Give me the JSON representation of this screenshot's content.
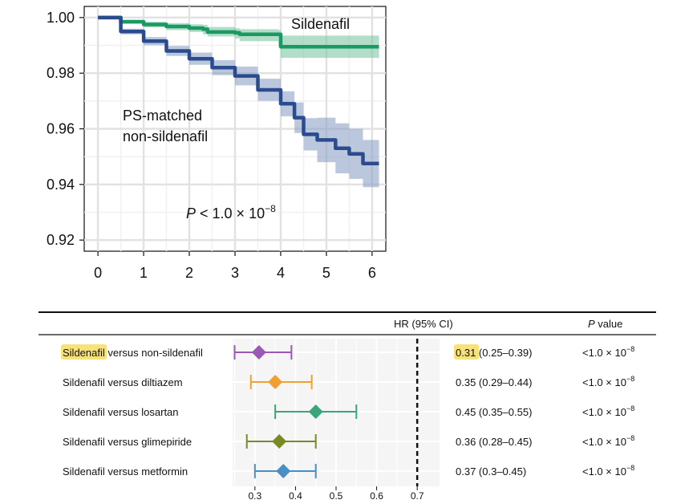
{
  "chart_data": [
    {
      "type": "line",
      "title": "",
      "xlabel": "",
      "ylabel": "",
      "xlim": [
        -0.3,
        6.3
      ],
      "ylim": [
        0.916,
        1.004
      ],
      "x_ticks": [
        "0",
        "1",
        "2",
        "3",
        "4",
        "5",
        "6"
      ],
      "y_ticks": [
        "1.00",
        "0.98",
        "0.96",
        "0.94",
        "0.92"
      ],
      "grid": true,
      "annotation": {
        "prefix": "P",
        "middle": " < 1.0 × 10",
        "exponent": "−8"
      },
      "series": [
        {
          "name": "Sildenafil",
          "color": "#1a9a63",
          "band_color": "#7fc6a4",
          "x": [
            0,
            0.5,
            1.0,
            1.5,
            2.0,
            2.3,
            2.4,
            3.0,
            3.1,
            3.95,
            4.0,
            6.15
          ],
          "y": [
            1.0,
            0.9985,
            0.9975,
            0.9968,
            0.9962,
            0.9958,
            0.9948,
            0.9945,
            0.994,
            0.994,
            0.9895,
            0.9895
          ],
          "lower": [
            1.0,
            0.9978,
            0.9965,
            0.9955,
            0.9948,
            0.994,
            0.9932,
            0.9925,
            0.9915,
            0.99,
            0.9855,
            0.9855
          ],
          "upper": [
            1.0,
            0.9992,
            0.9985,
            0.998,
            0.9976,
            0.9974,
            0.9966,
            0.9962,
            0.9958,
            0.9955,
            0.9935,
            0.9935
          ]
        },
        {
          "name": "PS-matched non-sildenafil",
          "color": "#2a4b8d",
          "band_color": "#8ea1c6",
          "x": [
            0,
            0.5,
            1.0,
            1.5,
            2.0,
            2.5,
            3.0,
            3.5,
            4.0,
            4.3,
            4.5,
            4.8,
            5.2,
            5.5,
            5.8,
            6.15
          ],
          "y": [
            1.0,
            0.995,
            0.9915,
            0.988,
            0.9852,
            0.982,
            0.979,
            0.974,
            0.969,
            0.964,
            0.958,
            0.956,
            0.953,
            0.951,
            0.9475,
            0.9475
          ],
          "lower": [
            1.0,
            0.994,
            0.99,
            0.9862,
            0.983,
            0.9793,
            0.9756,
            0.97,
            0.9645,
            0.9585,
            0.9522,
            0.948,
            0.944,
            0.942,
            0.939,
            0.939
          ],
          "upper": [
            1.0,
            0.996,
            0.993,
            0.9898,
            0.9874,
            0.9847,
            0.9824,
            0.978,
            0.9735,
            0.9695,
            0.9638,
            0.964,
            0.962,
            0.96,
            0.956,
            0.956
          ]
        }
      ],
      "labels": {
        "sildenafil": "Sildenafil",
        "nonsil_line1": "PS-matched",
        "nonsil_line2": "non-sildenafil"
      }
    },
    {
      "type": "forest",
      "header_hr": "HR (95% CI)",
      "header_p_italic": "P",
      "header_p_rest": " value",
      "xlim": [
        0.245,
        0.755
      ],
      "x_ticks": [
        0.3,
        0.4,
        0.5,
        0.6,
        0.7
      ],
      "x_tick_labels": [
        "0.3",
        "0.4",
        "0.5",
        "0.6",
        "0.7"
      ],
      "reference_line": 0.7,
      "rows": [
        {
          "label_highlight": "Sildenafil",
          "label_rest": " versus non-sildenafil",
          "hr": 0.31,
          "lo": 0.25,
          "hi": 0.39,
          "color": "#9b59b6",
          "hr_text": "0.31",
          "ci_text": " (0.25–0.39)",
          "highlight": true,
          "p_text": "<1.0 × 10",
          "p_exp": "−8"
        },
        {
          "label_highlight": "",
          "label_rest": "Sildenafil versus diltiazem",
          "hr": 0.35,
          "lo": 0.29,
          "hi": 0.44,
          "color": "#f0a030",
          "hr_text": "0.35",
          "ci_text": " (0.29–0.44)",
          "highlight": false,
          "p_text": "<1.0 × 10",
          "p_exp": "−8"
        },
        {
          "label_highlight": "",
          "label_rest": "Sildenafil versus losartan",
          "hr": 0.45,
          "lo": 0.35,
          "hi": 0.55,
          "color": "#3aa57a",
          "hr_text": "0.45",
          "ci_text": " (0.35–0.55)",
          "highlight": false,
          "p_text": "<1.0 × 10",
          "p_exp": "−8"
        },
        {
          "label_highlight": "",
          "label_rest": "Sildenafil versus glimepiride",
          "hr": 0.36,
          "lo": 0.28,
          "hi": 0.45,
          "color": "#7a8a22",
          "hr_text": "0.36",
          "ci_text": " (0.28–0.45)",
          "highlight": false,
          "p_text": "<1.0 × 10",
          "p_exp": "−8"
        },
        {
          "label_highlight": "",
          "label_rest": "Sildenafil versus metformin",
          "hr": 0.37,
          "lo": 0.3,
          "hi": 0.45,
          "color": "#4a8ec6",
          "hr_text": "0.37",
          "ci_text": " (0.3–0.45)",
          "highlight": false,
          "p_text": "<1.0 × 10",
          "p_exp": "−8"
        }
      ],
      "highlight_color": "#f7e27a"
    }
  ]
}
